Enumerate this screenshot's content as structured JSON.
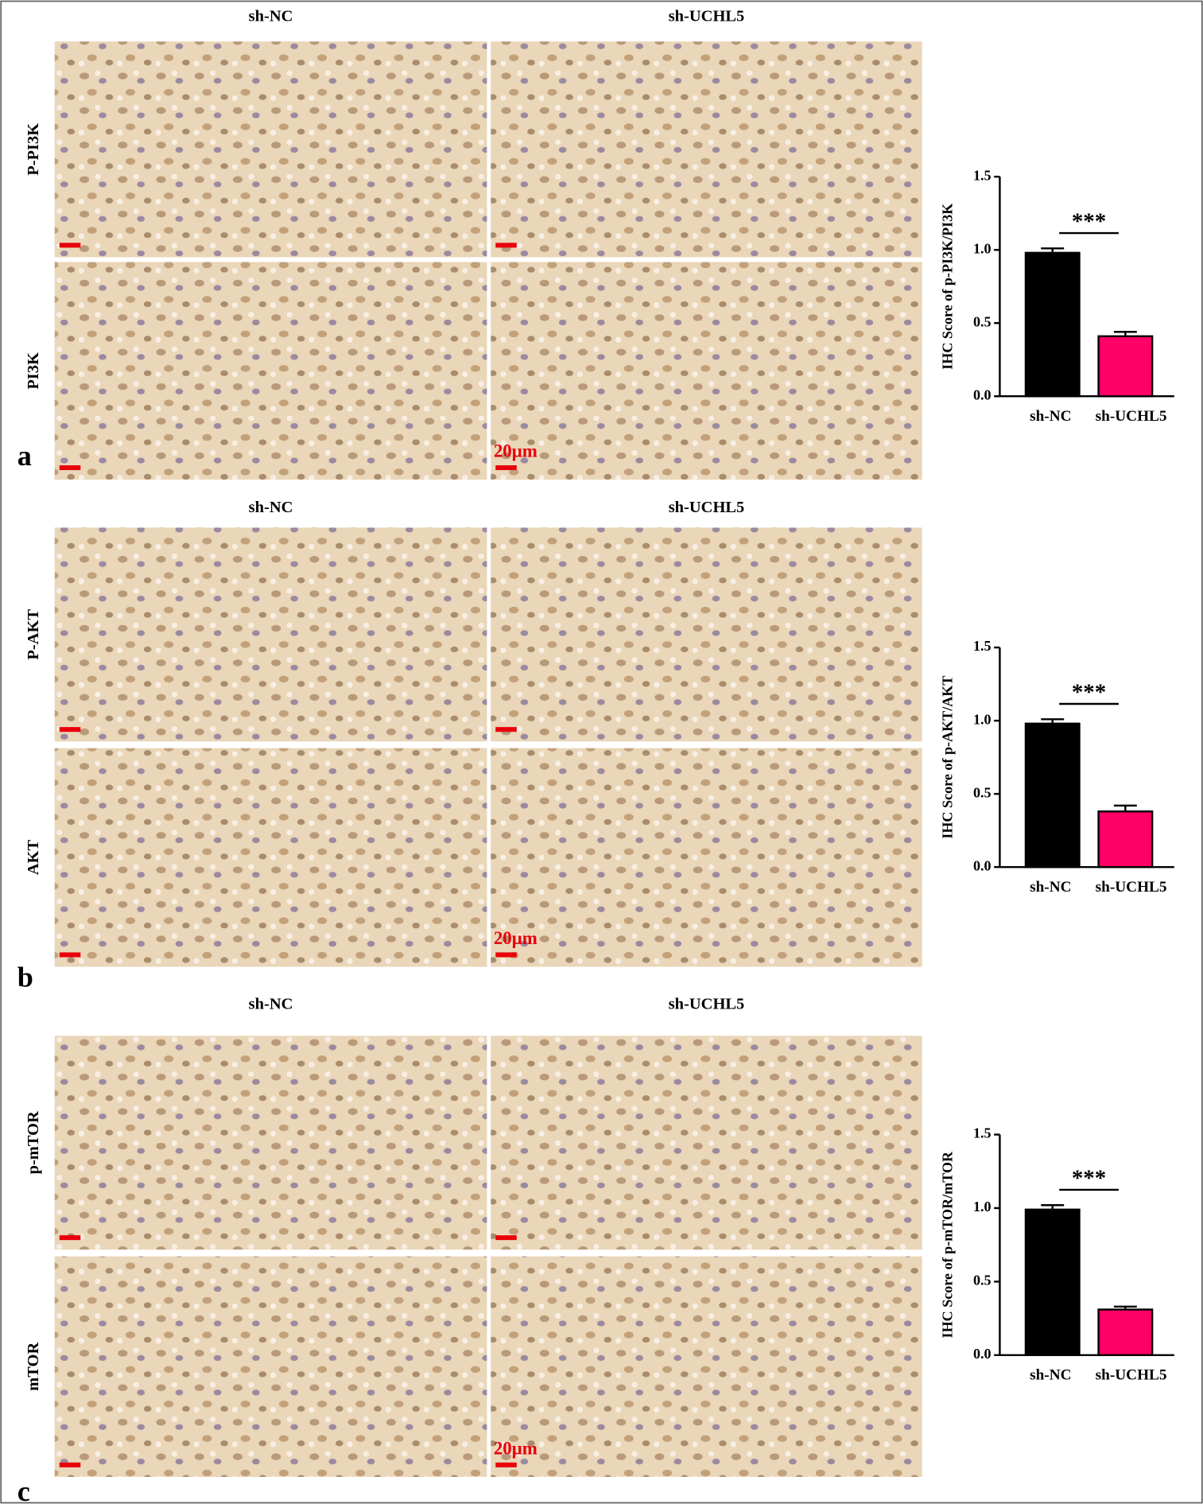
{
  "figure": {
    "panels": [
      {
        "label": "a",
        "columns": [
          "sh-NC",
          "sh-UCHL5"
        ],
        "rows": [
          "P-PI3K",
          "PI3K"
        ],
        "scale_label": "20μm"
      },
      {
        "label": "b",
        "columns": [
          "sh-NC",
          "sh-UCHL5"
        ],
        "rows": [
          "P-AKT",
          "AKT"
        ],
        "scale_label": "20μm"
      },
      {
        "label": "c",
        "columns": [
          "sh-NC",
          "sh-UCHL5"
        ],
        "rows": [
          "p-mTOR",
          "mTOR"
        ],
        "scale_label": "20μm"
      }
    ]
  },
  "chart_data": [
    {
      "type": "bar",
      "y_label": "IHC Score of p-PI3K/PI3K",
      "categories": [
        "sh-NC",
        "sh-UCHL5"
      ],
      "values": [
        0.98,
        0.41
      ],
      "errors": [
        0.03,
        0.03
      ],
      "colors": [
        "#000000",
        "#ff0066"
      ],
      "annotation": "***",
      "ylim": [
        0,
        1.5
      ],
      "yticks": [
        {
          "value": 0,
          "label": "0.0"
        },
        {
          "value": 0.5,
          "label": "0.5"
        },
        {
          "value": 1,
          "label": "1.0"
        },
        {
          "value": 1.5,
          "label": "1.5"
        }
      ]
    },
    {
      "type": "bar",
      "y_label": "IHC Score of p-AKT/AKT",
      "categories": [
        "sh-NC",
        "sh-UCHL5"
      ],
      "values": [
        0.98,
        0.38
      ],
      "errors": [
        0.03,
        0.04
      ],
      "colors": [
        "#000000",
        "#ff0066"
      ],
      "annotation": "***",
      "ylim": [
        0,
        1.5
      ],
      "yticks": [
        {
          "value": 0,
          "label": "0.0"
        },
        {
          "value": 0.5,
          "label": "0.5"
        },
        {
          "value": 1,
          "label": "1.0"
        },
        {
          "value": 1.5,
          "label": "1.5"
        }
      ]
    },
    {
      "type": "bar",
      "y_label": "IHC Score of p-mTOR/mTOR",
      "categories": [
        "sh-NC",
        "sh-UCHL5"
      ],
      "values": [
        0.99,
        0.31
      ],
      "errors": [
        0.03,
        0.02
      ],
      "colors": [
        "#000000",
        "#ff0066"
      ],
      "annotation": "***",
      "ylim": [
        0,
        1.5
      ],
      "yticks": [
        {
          "value": 0,
          "label": "0.0"
        },
        {
          "value": 0.5,
          "label": "0.5"
        },
        {
          "value": 1,
          "label": "1.0"
        },
        {
          "value": 1.5,
          "label": "1.5"
        }
      ]
    }
  ]
}
